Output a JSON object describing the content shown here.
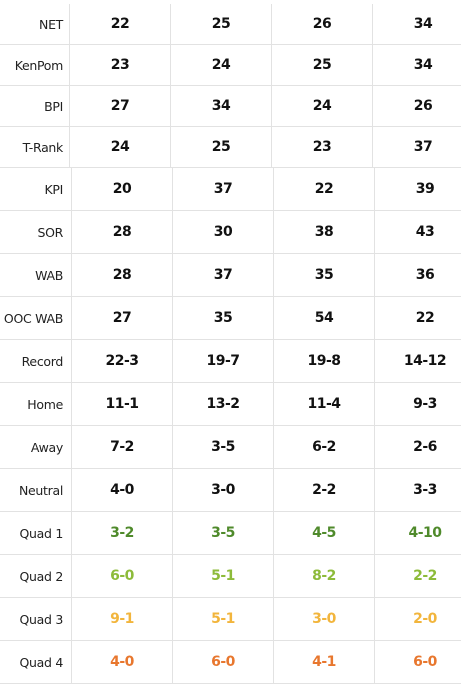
{
  "table": {
    "rows": [
      {
        "label": "NET",
        "color": "#111111",
        "cells": [
          "22",
          "25",
          "26",
          "34"
        ]
      },
      {
        "label": "KenPom",
        "color": "#111111",
        "cells": [
          "23",
          "24",
          "25",
          "34"
        ]
      },
      {
        "label": "BPI",
        "color": "#111111",
        "cells": [
          "27",
          "34",
          "24",
          "26"
        ]
      },
      {
        "label": "T-Rank",
        "color": "#111111",
        "cells": [
          "24",
          "25",
          "23",
          "37"
        ]
      },
      {
        "label": "KPI",
        "color": "#111111",
        "cells": [
          "20",
          "37",
          "22",
          "39"
        ]
      },
      {
        "label": "SOR",
        "color": "#111111",
        "cells": [
          "28",
          "30",
          "38",
          "43"
        ]
      },
      {
        "label": "WAB",
        "color": "#111111",
        "cells": [
          "28",
          "37",
          "35",
          "36"
        ]
      },
      {
        "label": "OOC WAB",
        "color": "#111111",
        "cells": [
          "27",
          "35",
          "54",
          "22"
        ]
      },
      {
        "label": "Record",
        "color": "#111111",
        "cells": [
          "22-3",
          "19-7",
          "19-8",
          "14-12"
        ]
      },
      {
        "label": "Home",
        "color": "#111111",
        "cells": [
          "11-1",
          "13-2",
          "11-4",
          "9-3"
        ]
      },
      {
        "label": "Away",
        "color": "#111111",
        "cells": [
          "7-2",
          "3-5",
          "6-2",
          "2-6"
        ]
      },
      {
        "label": "Neutral",
        "color": "#111111",
        "cells": [
          "4-0",
          "3-0",
          "2-2",
          "3-3"
        ]
      },
      {
        "label": "Quad 1",
        "color": "#4f8a2b",
        "cells": [
          "3-2",
          "3-5",
          "4-5",
          "4-10"
        ]
      },
      {
        "label": "Quad 2",
        "color": "#8dbb3a",
        "cells": [
          "6-0",
          "5-1",
          "8-2",
          "2-2"
        ]
      },
      {
        "label": "Quad 3",
        "color": "#f2b53c",
        "cells": [
          "9-1",
          "5-1",
          "3-0",
          "2-0"
        ]
      },
      {
        "label": "Quad 4",
        "color": "#e8772e",
        "cells": [
          "4-0",
          "6-0",
          "4-1",
          "6-0"
        ]
      }
    ]
  }
}
